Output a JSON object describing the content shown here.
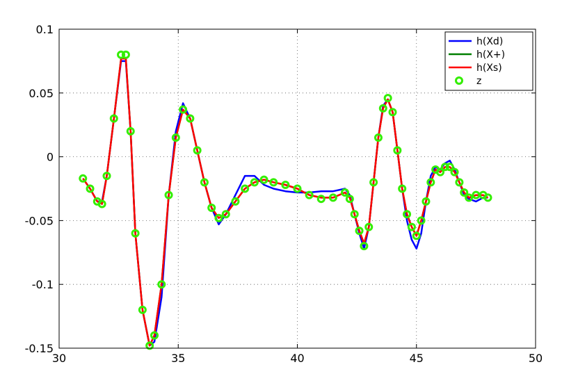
{
  "chart_data": {
    "type": "line",
    "title": "",
    "xlabel": "",
    "ylabel": "",
    "xlim": [
      30,
      50
    ],
    "ylim": [
      -0.15,
      0.1
    ],
    "grid": true,
    "legend_position": "top-right",
    "x_ticks": [
      30,
      35,
      40,
      45,
      50
    ],
    "x_tick_labels": [
      "30",
      "35",
      "40",
      "45",
      "50"
    ],
    "y_ticks": [
      0.1,
      0.05,
      0,
      -0.05,
      -0.1,
      -0.15
    ],
    "y_tick_labels": [
      "0.1",
      "0.05",
      "0",
      "-0.05",
      "-0.1",
      "-0.15"
    ],
    "x": [
      31.0,
      31.3,
      31.6,
      31.8,
      32.0,
      32.3,
      32.6,
      32.8,
      33.0,
      33.2,
      33.5,
      33.8,
      34.0,
      34.3,
      34.6,
      34.9,
      35.2,
      35.5,
      35.8,
      36.1,
      36.4,
      36.7,
      37.0,
      37.4,
      37.8,
      38.2,
      38.6,
      39.0,
      39.5,
      40.0,
      40.5,
      41.0,
      41.5,
      42.0,
      42.2,
      42.4,
      42.6,
      42.8,
      43.0,
      43.2,
      43.4,
      43.6,
      43.8,
      44.0,
      44.2,
      44.4,
      44.6,
      44.8,
      45.0,
      45.2,
      45.4,
      45.6,
      45.8,
      46.0,
      46.2,
      46.4,
      46.6,
      46.8,
      47.0,
      47.2,
      47.5,
      47.8,
      48.0
    ],
    "series": [
      {
        "name": "h(Xd)",
        "color": "#0000ff",
        "values": [
          -0.017,
          -0.025,
          -0.035,
          -0.035,
          -0.015,
          0.03,
          0.075,
          0.075,
          0.02,
          -0.06,
          -0.12,
          -0.148,
          -0.145,
          -0.11,
          -0.03,
          0.02,
          0.042,
          0.03,
          0.005,
          -0.02,
          -0.04,
          -0.053,
          -0.045,
          -0.03,
          -0.015,
          -0.015,
          -0.022,
          -0.025,
          -0.027,
          -0.028,
          -0.028,
          -0.027,
          -0.027,
          -0.025,
          -0.03,
          -0.045,
          -0.06,
          -0.072,
          -0.055,
          -0.02,
          0.015,
          0.04,
          0.045,
          0.035,
          0.005,
          -0.025,
          -0.05,
          -0.065,
          -0.072,
          -0.06,
          -0.035,
          -0.015,
          -0.008,
          -0.01,
          -0.005,
          -0.003,
          -0.01,
          -0.02,
          -0.03,
          -0.033,
          -0.035,
          -0.032,
          -0.032
        ]
      },
      {
        "name": "h(X+)",
        "color": "#007f00",
        "values": [
          -0.017,
          -0.025,
          -0.035,
          -0.037,
          -0.015,
          0.03,
          0.077,
          0.077,
          0.02,
          -0.06,
          -0.12,
          -0.148,
          -0.14,
          -0.1,
          -0.03,
          0.015,
          0.037,
          0.03,
          0.005,
          -0.02,
          -0.04,
          -0.048,
          -0.045,
          -0.035,
          -0.025,
          -0.02,
          -0.018,
          -0.02,
          -0.022,
          -0.025,
          -0.03,
          -0.032,
          -0.032,
          -0.028,
          -0.032,
          -0.045,
          -0.058,
          -0.068,
          -0.055,
          -0.02,
          0.015,
          0.038,
          0.045,
          0.035,
          0.005,
          -0.025,
          -0.045,
          -0.055,
          -0.062,
          -0.05,
          -0.035,
          -0.02,
          -0.01,
          -0.012,
          -0.008,
          -0.008,
          -0.012,
          -0.02,
          -0.028,
          -0.032,
          -0.03,
          -0.03,
          -0.032
        ]
      },
      {
        "name": "h(Xs)",
        "color": "#ff0000",
        "values": [
          -0.017,
          -0.025,
          -0.035,
          -0.037,
          -0.015,
          0.03,
          0.077,
          0.077,
          0.02,
          -0.06,
          -0.12,
          -0.148,
          -0.14,
          -0.1,
          -0.03,
          0.015,
          0.037,
          0.03,
          0.005,
          -0.02,
          -0.04,
          -0.048,
          -0.045,
          -0.035,
          -0.025,
          -0.02,
          -0.018,
          -0.02,
          -0.022,
          -0.025,
          -0.03,
          -0.032,
          -0.032,
          -0.028,
          -0.032,
          -0.045,
          -0.058,
          -0.068,
          -0.055,
          -0.02,
          0.015,
          0.038,
          0.045,
          0.035,
          0.005,
          -0.025,
          -0.045,
          -0.055,
          -0.062,
          -0.05,
          -0.035,
          -0.02,
          -0.01,
          -0.012,
          -0.008,
          -0.008,
          -0.012,
          -0.02,
          -0.028,
          -0.032,
          -0.03,
          -0.03,
          -0.032
        ]
      },
      {
        "name": "z",
        "color": "#33ee00",
        "marker": "circle",
        "values": [
          -0.017,
          -0.025,
          -0.035,
          -0.037,
          -0.015,
          0.03,
          0.08,
          0.08,
          0.02,
          -0.06,
          -0.12,
          -0.148,
          -0.14,
          -0.1,
          -0.03,
          0.015,
          0.037,
          0.03,
          0.005,
          -0.02,
          -0.04,
          -0.048,
          -0.045,
          -0.035,
          -0.025,
          -0.02,
          -0.018,
          -0.02,
          -0.022,
          -0.025,
          -0.03,
          -0.033,
          -0.032,
          -0.028,
          -0.033,
          -0.045,
          -0.058,
          -0.07,
          -0.055,
          -0.02,
          0.015,
          0.038,
          0.046,
          0.035,
          0.005,
          -0.025,
          -0.045,
          -0.055,
          -0.062,
          -0.05,
          -0.035,
          -0.02,
          -0.01,
          -0.012,
          -0.008,
          -0.008,
          -0.012,
          -0.02,
          -0.028,
          -0.032,
          -0.03,
          -0.03,
          -0.032
        ]
      }
    ]
  }
}
